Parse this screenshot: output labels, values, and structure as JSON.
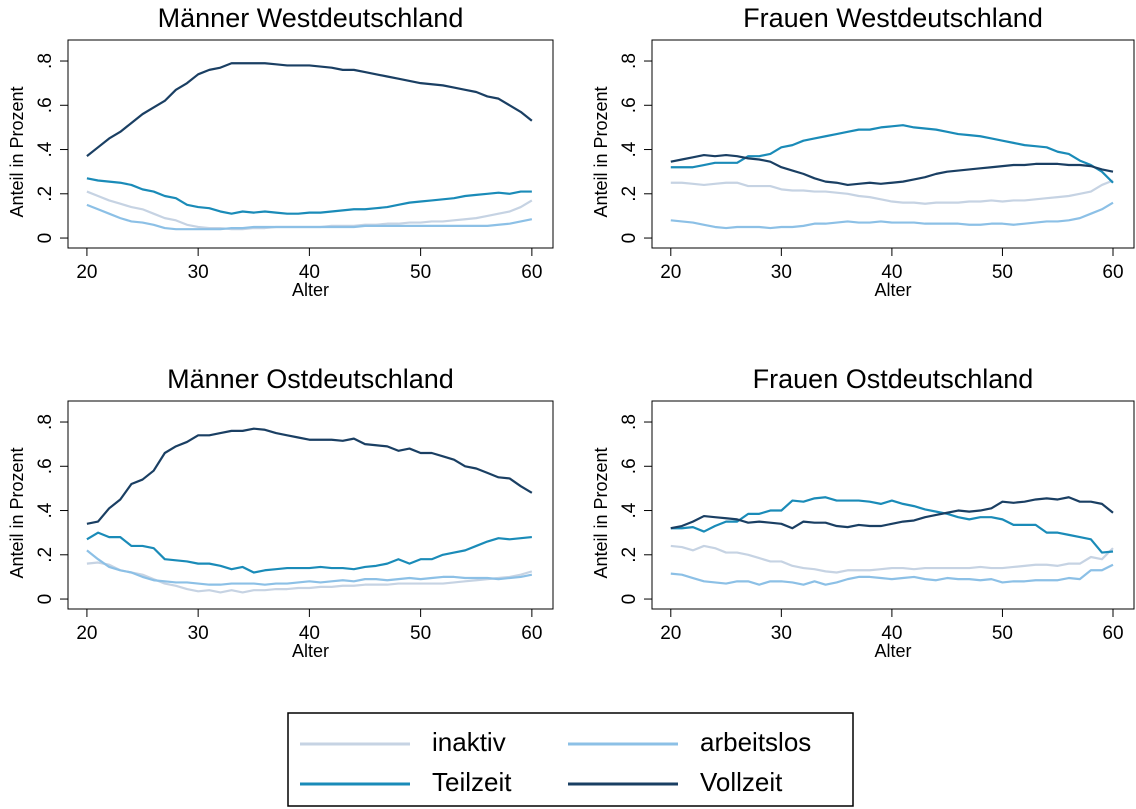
{
  "chart_data": [
    {
      "type": "line",
      "title": "Männer Westdeutschland",
      "xlabel": "Alter",
      "ylabel": "Anteil in Prozent",
      "x": [
        20,
        21,
        22,
        23,
        24,
        25,
        26,
        27,
        28,
        29,
        30,
        31,
        32,
        33,
        34,
        35,
        36,
        37,
        38,
        39,
        40,
        41,
        42,
        43,
        44,
        45,
        46,
        47,
        48,
        49,
        50,
        51,
        52,
        53,
        54,
        55,
        56,
        57,
        58,
        59,
        60
      ],
      "xlim": [
        18.3,
        61.9
      ],
      "xticks": [
        20,
        30,
        40,
        50,
        60
      ],
      "ylim": [
        -0.045,
        0.895
      ],
      "yticks": [
        0,
        {
          "value": 0.2,
          "label": ".2"
        },
        {
          "value": 0.4,
          "label": ".4"
        },
        {
          "value": 0.6,
          "label": ".6"
        },
        {
          "value": 0.8,
          "label": ".8"
        }
      ],
      "series": [
        {
          "name": "inaktiv",
          "color": "#c6d3e3",
          "values": [
            0.21,
            0.19,
            0.17,
            0.155,
            0.14,
            0.13,
            0.11,
            0.09,
            0.08,
            0.06,
            0.05,
            0.045,
            0.045,
            0.04,
            0.04,
            0.045,
            0.045,
            0.05,
            0.05,
            0.05,
            0.05,
            0.05,
            0.055,
            0.055,
            0.055,
            0.06,
            0.06,
            0.065,
            0.065,
            0.07,
            0.07,
            0.075,
            0.075,
            0.08,
            0.085,
            0.09,
            0.1,
            0.11,
            0.12,
            0.14,
            0.17
          ]
        },
        {
          "name": "arbeitslos",
          "color": "#8cc0e6",
          "values": [
            0.15,
            0.13,
            0.11,
            0.09,
            0.075,
            0.07,
            0.06,
            0.045,
            0.04,
            0.04,
            0.04,
            0.04,
            0.04,
            0.045,
            0.045,
            0.05,
            0.05,
            0.05,
            0.05,
            0.05,
            0.05,
            0.05,
            0.05,
            0.05,
            0.05,
            0.055,
            0.055,
            0.055,
            0.055,
            0.055,
            0.055,
            0.055,
            0.055,
            0.055,
            0.055,
            0.055,
            0.055,
            0.06,
            0.065,
            0.075,
            0.085
          ]
        },
        {
          "name": "Teilzeit",
          "color": "#1a8bb8",
          "values": [
            0.27,
            0.26,
            0.255,
            0.25,
            0.24,
            0.22,
            0.21,
            0.19,
            0.18,
            0.15,
            0.14,
            0.135,
            0.12,
            0.11,
            0.12,
            0.115,
            0.12,
            0.115,
            0.11,
            0.11,
            0.115,
            0.115,
            0.12,
            0.125,
            0.13,
            0.13,
            0.135,
            0.14,
            0.15,
            0.16,
            0.165,
            0.17,
            0.175,
            0.18,
            0.19,
            0.195,
            0.2,
            0.205,
            0.2,
            0.21,
            0.21
          ]
        },
        {
          "name": "Vollzeit",
          "color": "#1a3f63",
          "values": [
            0.37,
            0.41,
            0.45,
            0.48,
            0.52,
            0.56,
            0.59,
            0.62,
            0.67,
            0.7,
            0.74,
            0.76,
            0.77,
            0.79,
            0.79,
            0.79,
            0.79,
            0.785,
            0.78,
            0.78,
            0.78,
            0.775,
            0.77,
            0.76,
            0.76,
            0.75,
            0.74,
            0.73,
            0.72,
            0.71,
            0.7,
            0.695,
            0.69,
            0.68,
            0.67,
            0.66,
            0.64,
            0.63,
            0.6,
            0.57,
            0.53
          ]
        }
      ]
    },
    {
      "type": "line",
      "title": "Frauen Westdeutschland",
      "xlabel": "Alter",
      "ylabel": "Anteil in Prozent",
      "x": [
        20,
        21,
        22,
        23,
        24,
        25,
        26,
        27,
        28,
        29,
        30,
        31,
        32,
        33,
        34,
        35,
        36,
        37,
        38,
        39,
        40,
        41,
        42,
        43,
        44,
        45,
        46,
        47,
        48,
        49,
        50,
        51,
        52,
        53,
        54,
        55,
        56,
        57,
        58,
        59,
        60
      ],
      "xlim": [
        18.3,
        61.9
      ],
      "xticks": [
        20,
        30,
        40,
        50,
        60
      ],
      "ylim": [
        -0.045,
        0.895
      ],
      "yticks": [
        0,
        {
          "value": 0.2,
          "label": ".2"
        },
        {
          "value": 0.4,
          "label": ".4"
        },
        {
          "value": 0.6,
          "label": ".6"
        },
        {
          "value": 0.8,
          "label": ".8"
        }
      ],
      "series": [
        {
          "name": "inaktiv",
          "color": "#c6d3e3",
          "values": [
            0.25,
            0.25,
            0.245,
            0.24,
            0.245,
            0.25,
            0.25,
            0.235,
            0.235,
            0.235,
            0.22,
            0.215,
            0.215,
            0.21,
            0.21,
            0.205,
            0.2,
            0.19,
            0.185,
            0.175,
            0.165,
            0.16,
            0.16,
            0.155,
            0.16,
            0.16,
            0.16,
            0.165,
            0.165,
            0.17,
            0.165,
            0.17,
            0.17,
            0.175,
            0.18,
            0.185,
            0.19,
            0.2,
            0.21,
            0.24,
            0.26
          ]
        },
        {
          "name": "arbeitslos",
          "color": "#8cc0e6",
          "values": [
            0.08,
            0.075,
            0.07,
            0.06,
            0.05,
            0.045,
            0.05,
            0.05,
            0.05,
            0.045,
            0.05,
            0.05,
            0.055,
            0.065,
            0.065,
            0.07,
            0.075,
            0.07,
            0.07,
            0.075,
            0.07,
            0.07,
            0.07,
            0.065,
            0.065,
            0.065,
            0.065,
            0.06,
            0.06,
            0.065,
            0.065,
            0.06,
            0.065,
            0.07,
            0.075,
            0.075,
            0.08,
            0.09,
            0.11,
            0.13,
            0.16
          ]
        },
        {
          "name": "Teilzeit",
          "color": "#1a8bb8",
          "values": [
            0.32,
            0.32,
            0.32,
            0.33,
            0.34,
            0.34,
            0.34,
            0.37,
            0.37,
            0.38,
            0.41,
            0.42,
            0.44,
            0.45,
            0.46,
            0.47,
            0.48,
            0.49,
            0.49,
            0.5,
            0.505,
            0.51,
            0.5,
            0.495,
            0.49,
            0.48,
            0.47,
            0.465,
            0.46,
            0.45,
            0.44,
            0.43,
            0.42,
            0.415,
            0.41,
            0.39,
            0.38,
            0.35,
            0.33,
            0.3,
            0.25
          ]
        },
        {
          "name": "Vollzeit",
          "color": "#1a3f63",
          "values": [
            0.345,
            0.355,
            0.365,
            0.375,
            0.37,
            0.375,
            0.37,
            0.36,
            0.355,
            0.345,
            0.32,
            0.305,
            0.29,
            0.27,
            0.255,
            0.25,
            0.24,
            0.245,
            0.25,
            0.245,
            0.25,
            0.255,
            0.265,
            0.275,
            0.29,
            0.3,
            0.305,
            0.31,
            0.315,
            0.32,
            0.325,
            0.33,
            0.33,
            0.335,
            0.335,
            0.335,
            0.33,
            0.33,
            0.325,
            0.31,
            0.3
          ]
        }
      ]
    },
    {
      "type": "line",
      "title": "Männer Ostdeutschland",
      "xlabel": "Alter",
      "ylabel": "Anteil in Prozent",
      "x": [
        20,
        21,
        22,
        23,
        24,
        25,
        26,
        27,
        28,
        29,
        30,
        31,
        32,
        33,
        34,
        35,
        36,
        37,
        38,
        39,
        40,
        41,
        42,
        43,
        44,
        45,
        46,
        47,
        48,
        49,
        50,
        51,
        52,
        53,
        54,
        55,
        56,
        57,
        58,
        59,
        60
      ],
      "xlim": [
        18.3,
        61.9
      ],
      "xticks": [
        20,
        30,
        40,
        50,
        60
      ],
      "ylim": [
        -0.045,
        0.895
      ],
      "yticks": [
        0,
        {
          "value": 0.2,
          "label": ".2"
        },
        {
          "value": 0.4,
          "label": ".4"
        },
        {
          "value": 0.6,
          "label": ".6"
        },
        {
          "value": 0.8,
          "label": ".8"
        }
      ],
      "series": [
        {
          "name": "inaktiv",
          "color": "#c6d3e3",
          "values": [
            0.16,
            0.165,
            0.155,
            0.13,
            0.12,
            0.11,
            0.09,
            0.07,
            0.06,
            0.045,
            0.035,
            0.04,
            0.03,
            0.04,
            0.03,
            0.04,
            0.04,
            0.045,
            0.045,
            0.05,
            0.05,
            0.055,
            0.055,
            0.06,
            0.06,
            0.065,
            0.065,
            0.065,
            0.07,
            0.07,
            0.07,
            0.07,
            0.07,
            0.075,
            0.08,
            0.085,
            0.09,
            0.095,
            0.1,
            0.11,
            0.125
          ]
        },
        {
          "name": "arbeitslos",
          "color": "#8cc0e6",
          "values": [
            0.22,
            0.18,
            0.145,
            0.13,
            0.12,
            0.1,
            0.085,
            0.08,
            0.075,
            0.075,
            0.07,
            0.065,
            0.065,
            0.07,
            0.07,
            0.07,
            0.065,
            0.07,
            0.07,
            0.075,
            0.08,
            0.075,
            0.08,
            0.085,
            0.08,
            0.09,
            0.09,
            0.085,
            0.09,
            0.095,
            0.09,
            0.095,
            0.1,
            0.1,
            0.095,
            0.095,
            0.095,
            0.09,
            0.095,
            0.1,
            0.11
          ]
        },
        {
          "name": "Teilzeit",
          "color": "#1a8bb8",
          "values": [
            0.27,
            0.3,
            0.28,
            0.28,
            0.24,
            0.24,
            0.23,
            0.18,
            0.175,
            0.17,
            0.16,
            0.16,
            0.15,
            0.135,
            0.145,
            0.12,
            0.13,
            0.135,
            0.14,
            0.14,
            0.14,
            0.145,
            0.14,
            0.14,
            0.135,
            0.145,
            0.15,
            0.16,
            0.18,
            0.16,
            0.18,
            0.18,
            0.2,
            0.21,
            0.22,
            0.24,
            0.26,
            0.275,
            0.27,
            0.275,
            0.28
          ]
        },
        {
          "name": "Vollzeit",
          "color": "#1a3f63",
          "values": [
            0.34,
            0.35,
            0.41,
            0.45,
            0.52,
            0.54,
            0.58,
            0.66,
            0.69,
            0.71,
            0.74,
            0.74,
            0.75,
            0.76,
            0.76,
            0.77,
            0.765,
            0.75,
            0.74,
            0.73,
            0.72,
            0.72,
            0.72,
            0.715,
            0.725,
            0.7,
            0.695,
            0.69,
            0.67,
            0.68,
            0.66,
            0.66,
            0.645,
            0.63,
            0.6,
            0.59,
            0.57,
            0.55,
            0.545,
            0.51,
            0.48
          ]
        }
      ]
    },
    {
      "type": "line",
      "title": "Frauen Ostdeutschland",
      "xlabel": "Alter",
      "ylabel": "Anteil in Prozent",
      "x": [
        20,
        21,
        22,
        23,
        24,
        25,
        26,
        27,
        28,
        29,
        30,
        31,
        32,
        33,
        34,
        35,
        36,
        37,
        38,
        39,
        40,
        41,
        42,
        43,
        44,
        45,
        46,
        47,
        48,
        49,
        50,
        51,
        52,
        53,
        54,
        55,
        56,
        57,
        58,
        59,
        60
      ],
      "xlim": [
        18.3,
        61.9
      ],
      "xticks": [
        20,
        30,
        40,
        50,
        60
      ],
      "ylim": [
        -0.045,
        0.895
      ],
      "yticks": [
        0,
        {
          "value": 0.2,
          "label": ".2"
        },
        {
          "value": 0.4,
          "label": ".4"
        },
        {
          "value": 0.6,
          "label": ".6"
        },
        {
          "value": 0.8,
          "label": ".8"
        }
      ],
      "series": [
        {
          "name": "inaktiv",
          "color": "#c6d3e3",
          "values": [
            0.24,
            0.235,
            0.22,
            0.24,
            0.23,
            0.21,
            0.21,
            0.2,
            0.185,
            0.17,
            0.17,
            0.15,
            0.14,
            0.135,
            0.125,
            0.12,
            0.13,
            0.13,
            0.13,
            0.135,
            0.14,
            0.14,
            0.135,
            0.14,
            0.14,
            0.14,
            0.14,
            0.14,
            0.145,
            0.14,
            0.14,
            0.145,
            0.15,
            0.155,
            0.155,
            0.15,
            0.16,
            0.16,
            0.19,
            0.18,
            0.23
          ]
        },
        {
          "name": "arbeitslos",
          "color": "#8cc0e6",
          "values": [
            0.115,
            0.11,
            0.095,
            0.08,
            0.075,
            0.07,
            0.08,
            0.08,
            0.065,
            0.08,
            0.08,
            0.075,
            0.065,
            0.08,
            0.065,
            0.075,
            0.09,
            0.1,
            0.1,
            0.095,
            0.09,
            0.095,
            0.1,
            0.09,
            0.085,
            0.095,
            0.09,
            0.09,
            0.085,
            0.09,
            0.075,
            0.08,
            0.08,
            0.085,
            0.085,
            0.085,
            0.095,
            0.09,
            0.13,
            0.13,
            0.155
          ]
        },
        {
          "name": "Teilzeit",
          "color": "#1a8bb8",
          "values": [
            0.32,
            0.32,
            0.325,
            0.305,
            0.33,
            0.35,
            0.35,
            0.385,
            0.385,
            0.4,
            0.4,
            0.445,
            0.44,
            0.455,
            0.46,
            0.445,
            0.445,
            0.445,
            0.44,
            0.43,
            0.445,
            0.43,
            0.42,
            0.405,
            0.395,
            0.385,
            0.37,
            0.36,
            0.37,
            0.37,
            0.36,
            0.335,
            0.335,
            0.335,
            0.3,
            0.3,
            0.29,
            0.28,
            0.27,
            0.21,
            0.215
          ]
        },
        {
          "name": "Vollzeit",
          "color": "#1a3f63",
          "values": [
            0.32,
            0.33,
            0.35,
            0.375,
            0.37,
            0.365,
            0.36,
            0.345,
            0.35,
            0.345,
            0.34,
            0.32,
            0.35,
            0.345,
            0.345,
            0.33,
            0.325,
            0.335,
            0.33,
            0.33,
            0.34,
            0.35,
            0.355,
            0.37,
            0.38,
            0.39,
            0.4,
            0.395,
            0.4,
            0.41,
            0.44,
            0.435,
            0.44,
            0.45,
            0.455,
            0.45,
            0.46,
            0.44,
            0.44,
            0.43,
            0.39
          ]
        }
      ]
    }
  ]
}
